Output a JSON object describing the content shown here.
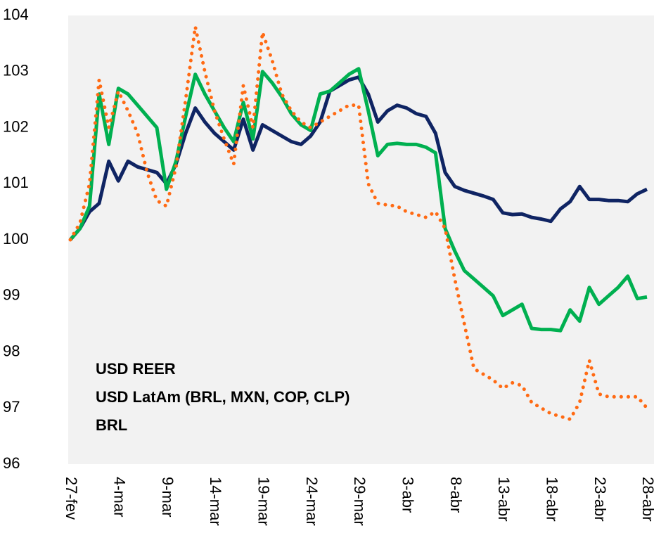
{
  "chart_data": {
    "type": "line",
    "categories": [
      "27-fev",
      null,
      null,
      null,
      null,
      "4-mar",
      null,
      null,
      null,
      null,
      "9-mar",
      null,
      null,
      null,
      null,
      "14-mar",
      null,
      null,
      null,
      null,
      "19-mar",
      null,
      null,
      null,
      null,
      "24-mar",
      null,
      null,
      null,
      null,
      "29-mar",
      null,
      null,
      null,
      null,
      "3-abr",
      null,
      null,
      null,
      null,
      "8-abr",
      null,
      null,
      null,
      null,
      "13-abr",
      null,
      null,
      null,
      null,
      "18-abr",
      null,
      null,
      null,
      null,
      "23-abr",
      null,
      null,
      null,
      null,
      "28-abr"
    ],
    "series": [
      {
        "name": "USD REER",
        "color": "#0f2463",
        "values": [
          100.0,
          100.2,
          100.5,
          100.65,
          101.4,
          101.05,
          101.4,
          101.3,
          101.25,
          101.2,
          101.0,
          101.35,
          101.9,
          102.35,
          102.1,
          101.9,
          101.75,
          101.6,
          102.15,
          101.6,
          102.05,
          101.95,
          101.85,
          101.75,
          101.7,
          101.85,
          102.1,
          102.65,
          102.75,
          102.85,
          102.9,
          102.6,
          102.1,
          102.3,
          102.4,
          102.35,
          102.25,
          102.2,
          101.9,
          101.2,
          100.95,
          100.88,
          100.83,
          100.78,
          100.72,
          100.48,
          100.45,
          100.46,
          100.4,
          100.37,
          100.33,
          100.55,
          100.68,
          100.95,
          100.72,
          100.72,
          100.7,
          100.7,
          100.68,
          100.82,
          100.9
        ]
      },
      {
        "name": "USD LatAm (BRL, MXN, COP, CLP)",
        "color": "#00b050",
        "values": [
          100.0,
          100.2,
          100.6,
          102.6,
          101.7,
          102.7,
          102.6,
          102.4,
          102.2,
          102.0,
          100.9,
          101.4,
          102.2,
          102.95,
          102.6,
          102.3,
          102.0,
          101.75,
          102.45,
          101.8,
          103.0,
          102.8,
          102.55,
          102.25,
          102.05,
          101.95,
          102.6,
          102.65,
          102.8,
          102.95,
          103.05,
          102.3,
          101.5,
          101.7,
          101.72,
          101.7,
          101.7,
          101.65,
          101.55,
          100.2,
          99.8,
          99.45,
          99.3,
          99.15,
          99.0,
          98.65,
          98.75,
          98.85,
          98.42,
          98.4,
          98.4,
          98.38,
          98.75,
          98.55,
          99.15,
          98.85,
          99.0,
          99.15,
          99.35,
          98.95,
          98.98
        ]
      },
      {
        "name": "BRL",
        "color": "#ff6a13",
        "values": [
          100.0,
          100.3,
          101.0,
          102.85,
          102.0,
          102.65,
          102.3,
          101.9,
          101.2,
          100.7,
          100.6,
          101.3,
          102.5,
          103.8,
          103.0,
          102.3,
          101.8,
          101.35,
          102.75,
          102.0,
          103.7,
          103.2,
          102.6,
          102.3,
          102.1,
          102.0,
          102.1,
          102.2,
          102.3,
          102.4,
          102.4,
          101.0,
          100.65,
          100.62,
          100.6,
          100.5,
          100.45,
          100.4,
          100.5,
          100.2,
          99.3,
          98.5,
          97.7,
          97.6,
          97.5,
          97.35,
          97.45,
          97.4,
          97.1,
          97.0,
          96.9,
          96.85,
          96.8,
          97.1,
          97.85,
          97.25,
          97.2,
          97.2,
          97.2,
          97.2,
          97.0
        ]
      }
    ],
    "ylim": [
      96,
      104
    ],
    "yticks": [
      96,
      97,
      98,
      99,
      100,
      101,
      102,
      103,
      104
    ]
  }
}
